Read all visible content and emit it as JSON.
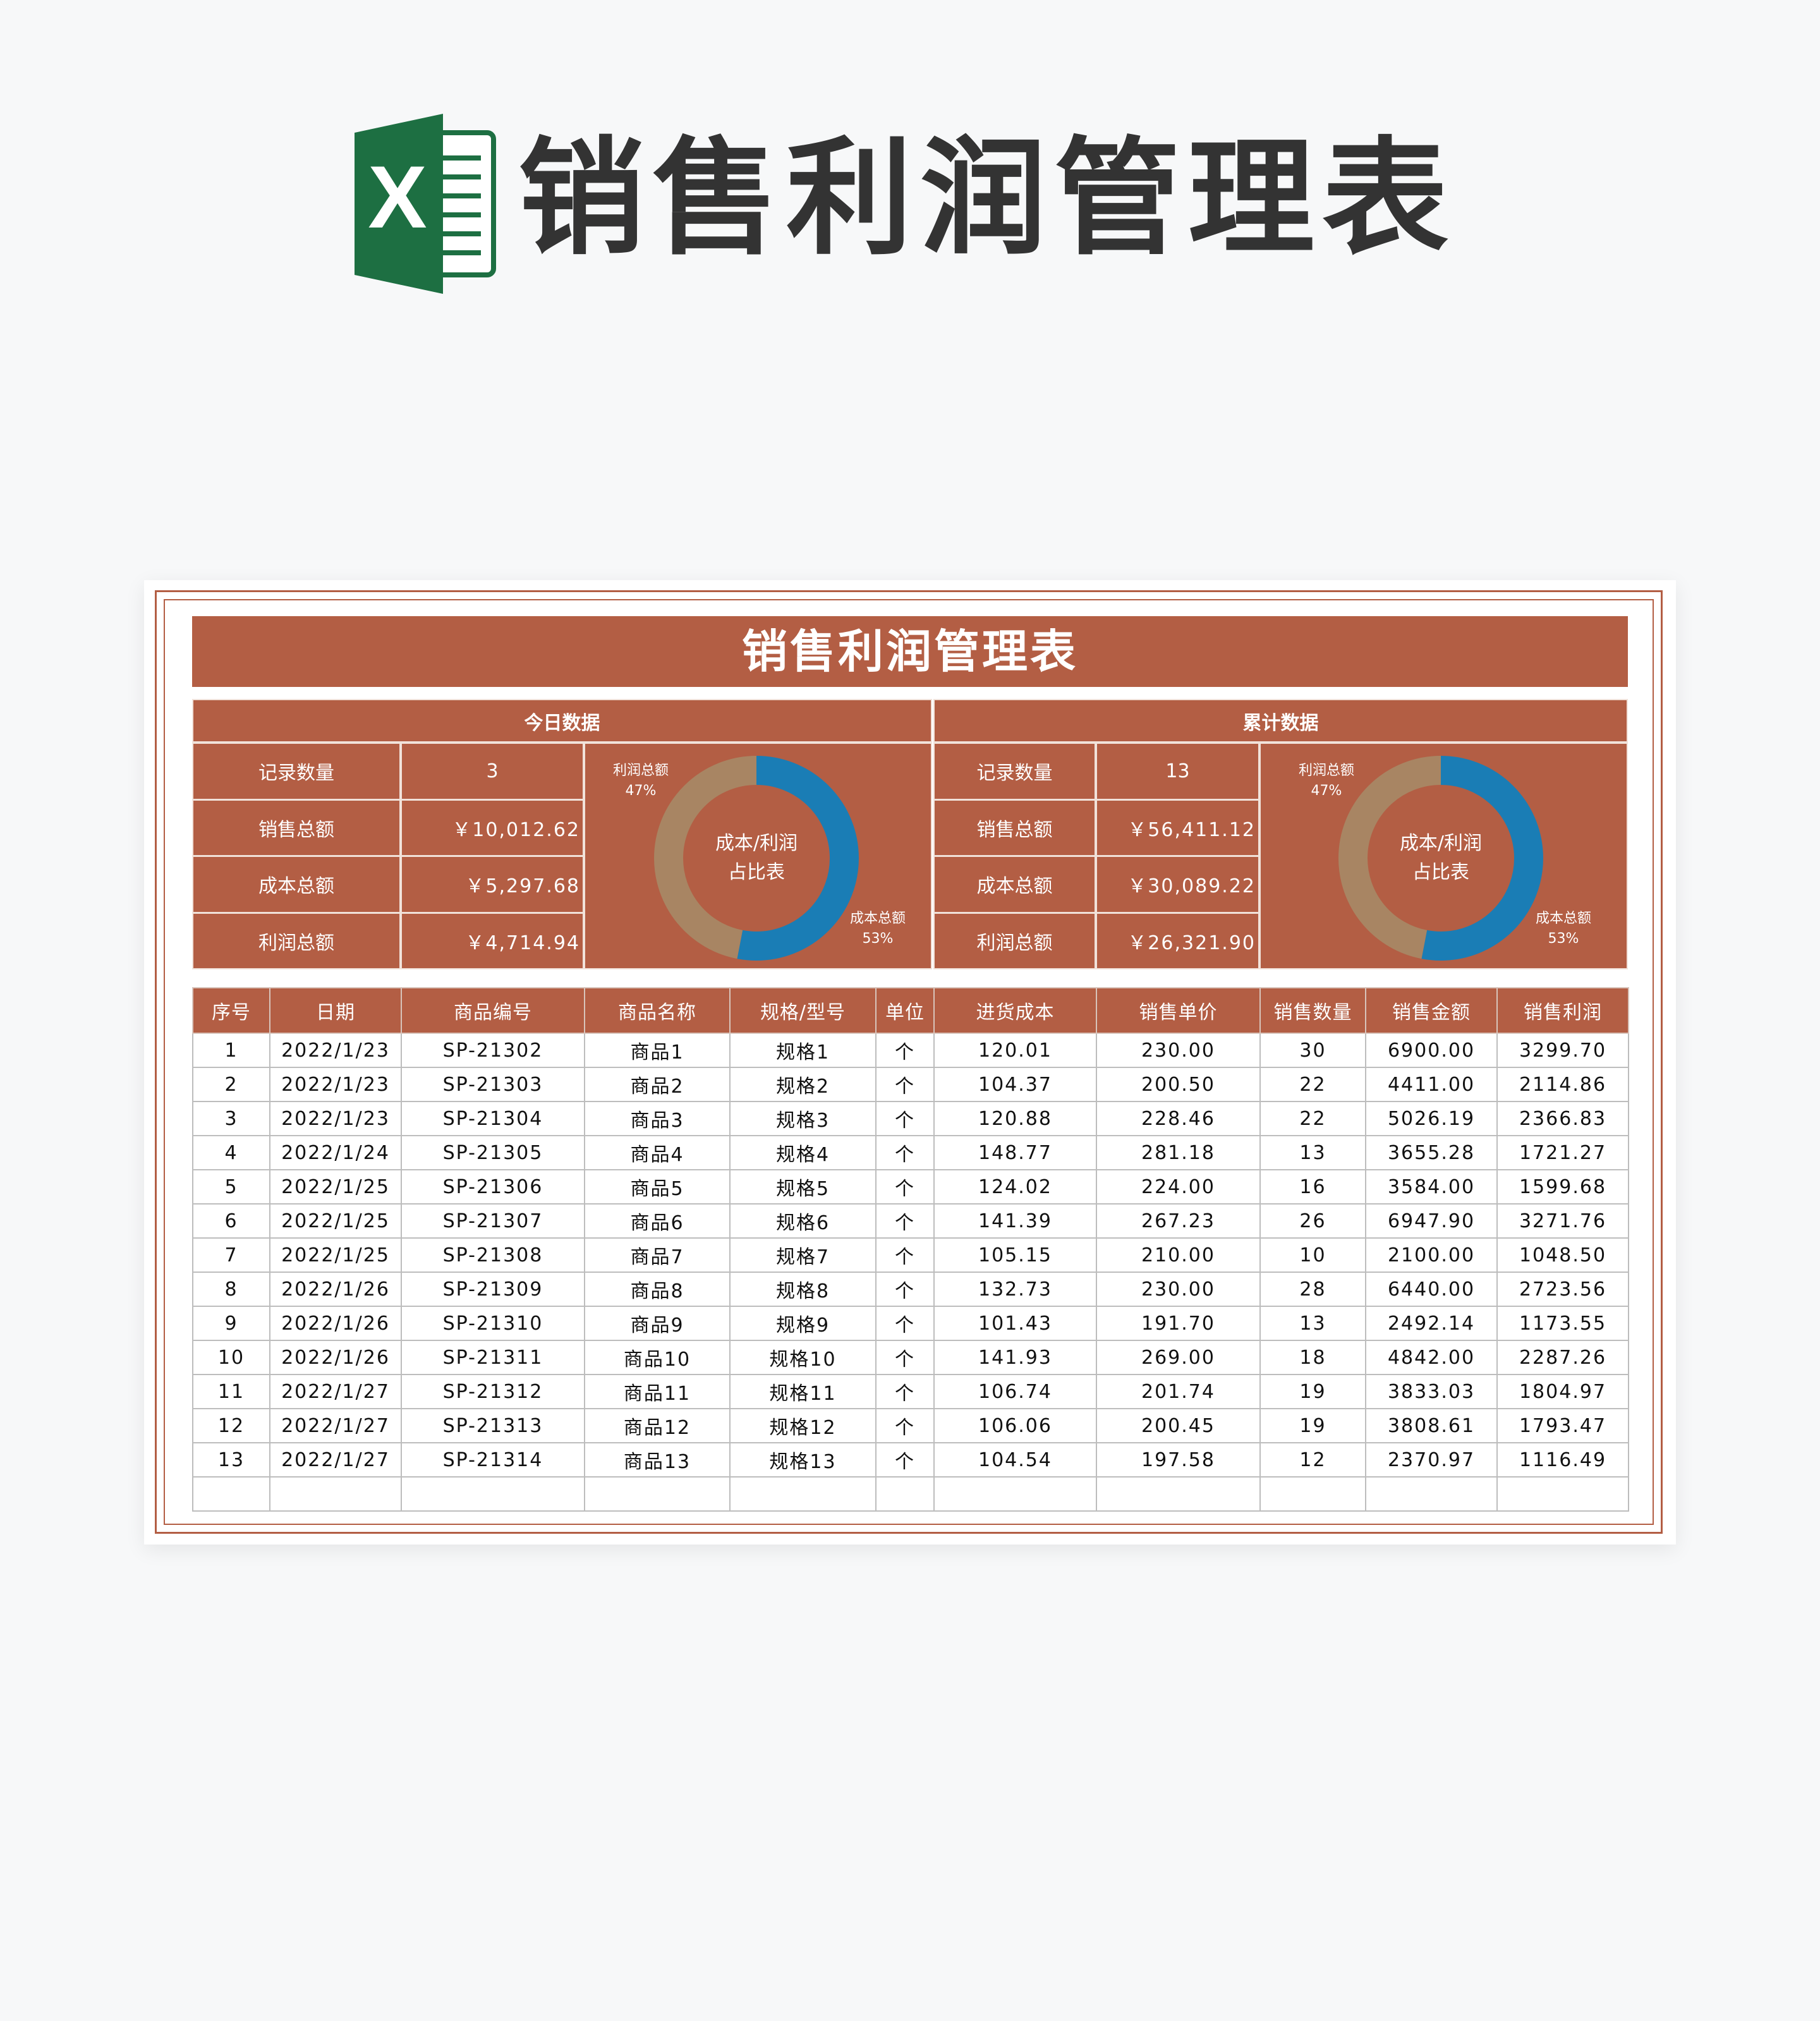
{
  "page_title": "销售利润管理表",
  "logo": {
    "icon": "excel-icon",
    "letter": "X",
    "color": "#1d6f42"
  },
  "sheet": {
    "title": "销售利润管理表",
    "colors": {
      "brand": "#b35e44",
      "cost_segment": "#1a7db5",
      "profit_segment": "#a88563"
    },
    "today": {
      "header": "今日数据",
      "rows": [
        {
          "label": "记录数量",
          "value": "3"
        },
        {
          "label": "销售总额",
          "value": "￥10,012.62"
        },
        {
          "label": "成本总额",
          "value": "￥5,297.68"
        },
        {
          "label": "利润总额",
          "value": "￥4,714.94"
        }
      ],
      "donut": {
        "center_line1": "成本/利润",
        "center_line2": "占比表",
        "profit_label": "利润总额",
        "profit_pct": "47%",
        "profit_value": 47,
        "cost_label": "成本总额",
        "cost_pct": "53%",
        "cost_value": 53
      }
    },
    "cumulative": {
      "header": "累计数据",
      "rows": [
        {
          "label": "记录数量",
          "value": "13"
        },
        {
          "label": "销售总额",
          "value": "￥56,411.12"
        },
        {
          "label": "成本总额",
          "value": "￥30,089.22"
        },
        {
          "label": "利润总额",
          "value": "￥26,321.90"
        }
      ],
      "donut": {
        "center_line1": "成本/利润",
        "center_line2": "占比表",
        "profit_label": "利润总额",
        "profit_pct": "47%",
        "profit_value": 47,
        "cost_label": "成本总额",
        "cost_pct": "53%",
        "cost_value": 53
      }
    },
    "table": {
      "columns": [
        "序号",
        "日期",
        "商品编号",
        "商品名称",
        "规格/型号",
        "单位",
        "进货成本",
        "销售单价",
        "销售数量",
        "销售金额",
        "销售利润"
      ],
      "rows": [
        [
          "1",
          "2022/1/23",
          "SP-21302",
          "商品1",
          "规格1",
          "个",
          "120.01",
          "230.00",
          "30",
          "6900.00",
          "3299.70"
        ],
        [
          "2",
          "2022/1/23",
          "SP-21303",
          "商品2",
          "规格2",
          "个",
          "104.37",
          "200.50",
          "22",
          "4411.00",
          "2114.86"
        ],
        [
          "3",
          "2022/1/23",
          "SP-21304",
          "商品3",
          "规格3",
          "个",
          "120.88",
          "228.46",
          "22",
          "5026.19",
          "2366.83"
        ],
        [
          "4",
          "2022/1/24",
          "SP-21305",
          "商品4",
          "规格4",
          "个",
          "148.77",
          "281.18",
          "13",
          "3655.28",
          "1721.27"
        ],
        [
          "5",
          "2022/1/25",
          "SP-21306",
          "商品5",
          "规格5",
          "个",
          "124.02",
          "224.00",
          "16",
          "3584.00",
          "1599.68"
        ],
        [
          "6",
          "2022/1/25",
          "SP-21307",
          "商品6",
          "规格6",
          "个",
          "141.39",
          "267.23",
          "26",
          "6947.90",
          "3271.76"
        ],
        [
          "7",
          "2022/1/25",
          "SP-21308",
          "商品7",
          "规格7",
          "个",
          "105.15",
          "210.00",
          "10",
          "2100.00",
          "1048.50"
        ],
        [
          "8",
          "2022/1/26",
          "SP-21309",
          "商品8",
          "规格8",
          "个",
          "132.73",
          "230.00",
          "28",
          "6440.00",
          "2723.56"
        ],
        [
          "9",
          "2022/1/26",
          "SP-21310",
          "商品9",
          "规格9",
          "个",
          "101.43",
          "191.70",
          "13",
          "2492.14",
          "1173.55"
        ],
        [
          "10",
          "2022/1/26",
          "SP-21311",
          "商品10",
          "规格10",
          "个",
          "141.93",
          "269.00",
          "18",
          "4842.00",
          "2287.26"
        ],
        [
          "11",
          "2022/1/27",
          "SP-21312",
          "商品11",
          "规格11",
          "个",
          "106.74",
          "201.74",
          "19",
          "3833.03",
          "1804.97"
        ],
        [
          "12",
          "2022/1/27",
          "SP-21313",
          "商品12",
          "规格12",
          "个",
          "106.06",
          "200.45",
          "19",
          "3808.61",
          "1793.47"
        ],
        [
          "13",
          "2022/1/27",
          "SP-21314",
          "商品13",
          "规格13",
          "个",
          "104.54",
          "197.58",
          "12",
          "2370.97",
          "1116.49"
        ],
        [
          "",
          "",
          "",
          "",
          "",
          "",
          "",
          "",
          "",
          "",
          ""
        ]
      ]
    }
  }
}
